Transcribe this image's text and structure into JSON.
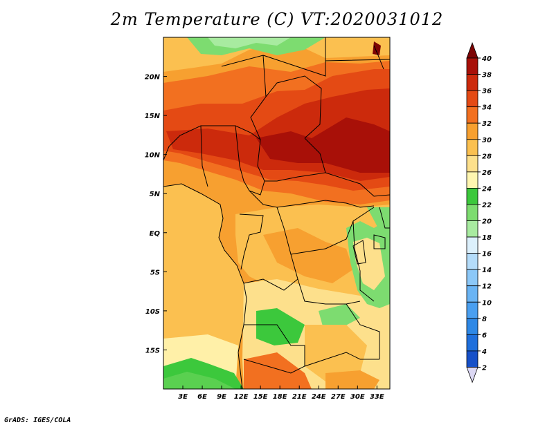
{
  "title": "2m Temperature (C) VT:2020031012",
  "credit": "GrADS: IGES/COLA",
  "map": {
    "lon_range": [
      0,
      35
    ],
    "lat_range": [
      -20,
      25
    ],
    "lon_ticks": [
      {
        "value": 3,
        "label": "3E"
      },
      {
        "value": 6,
        "label": "6E"
      },
      {
        "value": 9,
        "label": "9E"
      },
      {
        "value": 12,
        "label": "12E"
      },
      {
        "value": 15,
        "label": "15E"
      },
      {
        "value": 18,
        "label": "18E"
      },
      {
        "value": 21,
        "label": "21E"
      },
      {
        "value": 24,
        "label": "24E"
      },
      {
        "value": 27,
        "label": "27E"
      },
      {
        "value": 30,
        "label": "30E"
      },
      {
        "value": 33,
        "label": "33E"
      }
    ],
    "lat_ticks": [
      {
        "value": 20,
        "label": "20N"
      },
      {
        "value": 15,
        "label": "15N"
      },
      {
        "value": 10,
        "label": "10N"
      },
      {
        "value": 5,
        "label": "5N"
      },
      {
        "value": 0,
        "label": "EQ"
      },
      {
        "value": -5,
        "label": "5S"
      },
      {
        "value": -10,
        "label": "10S"
      },
      {
        "value": -15,
        "label": "15S"
      }
    ]
  },
  "colorbar": {
    "levels": [
      "2",
      "4",
      "6",
      "8",
      "10",
      "12",
      "14",
      "16",
      "18",
      "20",
      "22",
      "24",
      "26",
      "28",
      "30",
      "32",
      "34",
      "36",
      "38",
      "40"
    ],
    "colors": [
      "#1e1e9c",
      "#1650c8",
      "#1f6fdc",
      "#2e88e6",
      "#4a9ff0",
      "#6ab4f4",
      "#8cc8f8",
      "#b4dcfa",
      "#dcf0fc",
      "#a8eba0",
      "#7ddc70",
      "#3cc83c",
      "#fff6b0",
      "#fde08c",
      "#fbc050",
      "#f7a030",
      "#f27020",
      "#e44a14",
      "#cc2a0c",
      "#a81008",
      "#7c0404"
    ]
  }
}
